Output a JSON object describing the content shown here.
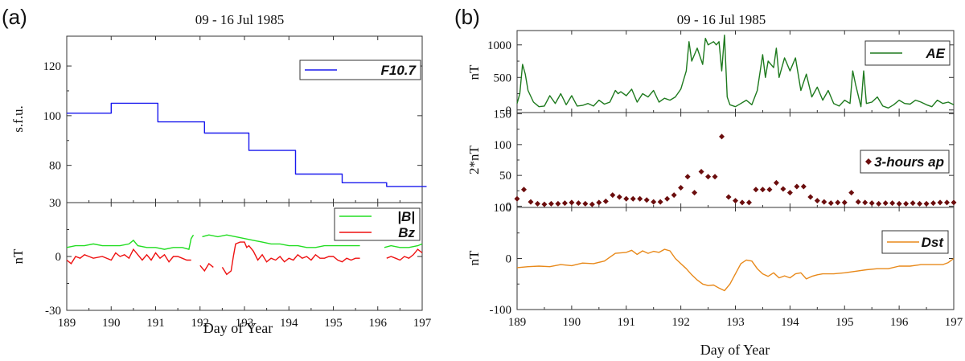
{
  "panel_a": {
    "label": "(a)",
    "title": "09 - 16 Jul 1985",
    "xlabel": "Day of Year",
    "x_ticks": [
      "189",
      "190",
      "191",
      "192",
      "193",
      "194",
      "195",
      "196",
      "197"
    ]
  },
  "panel_b": {
    "label": "(b)",
    "title": "09 - 16 Jul 1985",
    "xlabel": "Day of Year",
    "x_ticks": [
      "189",
      "190",
      "191",
      "192",
      "193",
      "194",
      "195",
      "196",
      "197"
    ]
  },
  "colors": {
    "f107": "#1a1aee",
    "b_total": "#22dd22",
    "bz": "#ee1111",
    "ae": "#1e7a1e",
    "ap": "#6b0d0d",
    "dst": "#e8891a"
  },
  "chart_data": [
    {
      "id": "f107",
      "panel": "a",
      "type": "line",
      "ylabel": "s.f.u.",
      "xlim": [
        189,
        197
      ],
      "ylim": [
        65,
        132
      ],
      "y_ticks": [
        80,
        100,
        120
      ],
      "legend_position": "top-right",
      "series": [
        {
          "name": "F10.7",
          "color_key": "f107",
          "step": true,
          "x": [
            189.0,
            190.0,
            190.0,
            191.05,
            191.05,
            192.1,
            192.1,
            193.1,
            193.1,
            194.15,
            194.15,
            195.2,
            195.2,
            196.2,
            196.2,
            197.1
          ],
          "y": [
            101,
            101,
            105,
            105,
            97.5,
            97.5,
            93,
            93,
            86,
            86,
            76.5,
            76.5,
            73,
            73,
            71.5,
            71.5
          ]
        }
      ]
    },
    {
      "id": "imf",
      "panel": "a",
      "type": "line",
      "ylabel": "nT",
      "xlim": [
        189,
        197
      ],
      "ylim": [
        -30,
        30
      ],
      "y_ticks": [
        -30,
        0,
        30
      ],
      "legend_position": "top-right",
      "series": [
        {
          "name": "|B|",
          "color_key": "b_total",
          "segments": [
            {
              "x": [
                189.0,
                189.2,
                189.4,
                189.6,
                189.8,
                190.0,
                190.2,
                190.4,
                190.5,
                190.6,
                190.8,
                191.0,
                191.2,
                191.4,
                191.6,
                191.75,
                191.8,
                191.85
              ],
              "y": [
                5,
                6,
                6,
                7,
                6,
                6,
                6,
                7,
                9,
                6,
                5,
                5,
                4,
                5,
                5,
                4,
                10,
                12
              ]
            },
            {
              "x": [
                192.05,
                192.2,
                192.4,
                192.6,
                192.8,
                193.0,
                193.2,
                193.4,
                193.6,
                193.8,
                194.0,
                194.2,
                194.4,
                194.6,
                194.8,
                195.0,
                195.2,
                195.4,
                195.6
              ],
              "y": [
                11,
                12,
                11,
                12,
                11,
                10,
                9,
                8,
                7,
                7,
                6,
                6,
                5,
                5,
                6,
                6,
                6,
                6,
                6
              ]
            },
            {
              "x": [
                196.15,
                196.3,
                196.5,
                196.7,
                196.9,
                197.0
              ],
              "y": [
                5,
                6,
                5,
                5,
                6,
                7
              ]
            }
          ]
        },
        {
          "name": "Bz",
          "color_key": "bz",
          "segments": [
            {
              "x": [
                189.0,
                189.1,
                189.2,
                189.3,
                189.4,
                189.5,
                189.6,
                189.8,
                190.0,
                190.1,
                190.2,
                190.3,
                190.4,
                190.5,
                190.6,
                190.7,
                190.8,
                190.9,
                191.0,
                191.1,
                191.2,
                191.3,
                191.4,
                191.5,
                191.6,
                191.7,
                191.8
              ],
              "y": [
                -2,
                -4,
                0,
                -1,
                1,
                0,
                -1,
                0,
                -2,
                2,
                0,
                1,
                -1,
                4,
                1,
                -2,
                1,
                -2,
                2,
                -1,
                1,
                -3,
                0,
                0,
                -1,
                -2,
                -2
              ]
            },
            {
              "x": [
                192.0,
                192.1,
                192.2,
                192.3
              ],
              "y": [
                -5,
                -8,
                -4,
                -6
              ]
            },
            {
              "x": [
                192.5,
                192.6,
                192.7,
                192.75,
                192.8,
                192.9,
                193.0,
                193.05,
                193.1,
                193.2,
                193.3,
                193.4,
                193.5,
                193.6,
                193.7,
                193.8,
                193.9,
                194.0,
                194.1,
                194.2,
                194.3,
                194.4,
                194.5,
                194.6,
                194.7,
                194.8,
                194.9,
                195.0,
                195.1,
                195.2,
                195.3,
                195.4,
                195.5,
                195.6
              ],
              "y": [
                -6,
                -10,
                -8,
                0,
                7,
                8,
                8,
                5,
                6,
                3,
                -2,
                1,
                -3,
                -1,
                -2,
                0,
                -3,
                -1,
                -2,
                1,
                -1,
                0,
                -2,
                1,
                -1,
                -1,
                0,
                0,
                -2,
                -3,
                -1,
                -2,
                -1,
                -1
              ]
            },
            {
              "x": [
                196.2,
                196.3,
                196.4,
                196.5,
                196.6,
                196.7,
                196.8,
                196.9,
                197.0
              ],
              "y": [
                -1,
                0,
                -1,
                -2,
                0,
                -1,
                1,
                4,
                2
              ]
            }
          ]
        }
      ]
    },
    {
      "id": "ae",
      "panel": "b",
      "type": "line",
      "ylabel": "nT",
      "xlim": [
        189,
        197
      ],
      "ylim": [
        -40,
        1220
      ],
      "y_ticks": [
        0,
        500,
        1000
      ],
      "legend_position": "top-right",
      "series": [
        {
          "name": "AE",
          "color_key": "ae",
          "x": [
            189.0,
            189.05,
            189.1,
            189.15,
            189.2,
            189.3,
            189.4,
            189.5,
            189.6,
            189.7,
            189.8,
            189.9,
            190.0,
            190.1,
            190.2,
            190.3,
            190.4,
            190.5,
            190.6,
            190.7,
            190.8,
            190.85,
            190.9,
            191.0,
            191.1,
            191.2,
            191.3,
            191.4,
            191.5,
            191.6,
            191.7,
            191.8,
            191.9,
            192.0,
            192.1,
            192.15,
            192.2,
            192.3,
            192.4,
            192.45,
            192.5,
            192.6,
            192.65,
            192.7,
            192.75,
            192.8,
            192.85,
            192.9,
            193.0,
            193.1,
            193.2,
            193.3,
            193.4,
            193.5,
            193.55,
            193.6,
            193.7,
            193.75,
            193.8,
            193.9,
            194.0,
            194.1,
            194.2,
            194.3,
            194.4,
            194.5,
            194.6,
            194.7,
            194.8,
            194.9,
            195.0,
            195.1,
            195.15,
            195.2,
            195.3,
            195.35,
            195.4,
            195.5,
            195.6,
            195.7,
            195.8,
            195.9,
            196.0,
            196.1,
            196.2,
            196.3,
            196.4,
            196.5,
            196.6,
            196.7,
            196.8,
            196.9,
            197.0
          ],
          "y": [
            100,
            250,
            700,
            550,
            300,
            120,
            50,
            60,
            220,
            100,
            250,
            80,
            220,
            60,
            70,
            100,
            60,
            150,
            90,
            120,
            300,
            250,
            280,
            220,
            320,
            120,
            250,
            200,
            300,
            120,
            180,
            150,
            200,
            320,
            600,
            1050,
            750,
            950,
            700,
            1100,
            1000,
            1050,
            1000,
            1050,
            600,
            1150,
            200,
            80,
            50,
            100,
            150,
            80,
            300,
            850,
            500,
            750,
            650,
            950,
            500,
            800,
            600,
            800,
            300,
            550,
            200,
            350,
            150,
            300,
            100,
            60,
            150,
            100,
            600,
            400,
            50,
            600,
            100,
            120,
            200,
            60,
            30,
            80,
            150,
            100,
            90,
            150,
            120,
            80,
            50,
            150,
            100,
            120,
            80
          ]
        }
      ]
    },
    {
      "id": "ap",
      "panel": "b",
      "type": "scatter",
      "ylabel": "2*nT",
      "xlim": [
        189,
        197
      ],
      "ylim": [
        -2,
        152
      ],
      "y_ticks": [
        0,
        50,
        100,
        150
      ],
      "legend_position": "top-right",
      "series": [
        {
          "name": "3-hours ap",
          "color_key": "ap",
          "x": [
            189.0,
            189.125,
            189.25,
            189.375,
            189.5,
            189.625,
            189.75,
            189.875,
            190.0,
            190.125,
            190.25,
            190.375,
            190.5,
            190.625,
            190.75,
            190.875,
            191.0,
            191.125,
            191.25,
            191.375,
            191.5,
            191.625,
            191.75,
            191.875,
            192.0,
            192.125,
            192.25,
            192.375,
            192.5,
            192.625,
            192.75,
            192.875,
            193.0,
            193.125,
            193.25,
            193.375,
            193.5,
            193.625,
            193.75,
            193.875,
            194.0,
            194.125,
            194.25,
            194.375,
            194.5,
            194.625,
            194.75,
            194.875,
            195.0,
            195.125,
            195.25,
            195.375,
            195.5,
            195.625,
            195.75,
            195.875,
            196.0,
            196.125,
            196.25,
            196.375,
            196.5,
            196.625,
            196.75,
            196.875,
            197.0
          ],
          "y": [
            12,
            27,
            7,
            4,
            3,
            4,
            4,
            5,
            6,
            5,
            4,
            3,
            6,
            8,
            18,
            15,
            12,
            12,
            12,
            10,
            7,
            7,
            12,
            18,
            30,
            48,
            22,
            56,
            48,
            48,
            113,
            15,
            9,
            6,
            6,
            27,
            27,
            27,
            38,
            28,
            22,
            32,
            32,
            15,
            9,
            7,
            5,
            6,
            6,
            22,
            7,
            6,
            5,
            4,
            5,
            5,
            4,
            4,
            5,
            4,
            4,
            5,
            6,
            6,
            6
          ]
        }
      ]
    },
    {
      "id": "dst",
      "panel": "b",
      "type": "line",
      "ylabel": "nT",
      "xlim": [
        189,
        197
      ],
      "ylim": [
        -100,
        100
      ],
      "y_ticks": [
        -100,
        0,
        100
      ],
      "legend_position": "top-right",
      "series": [
        {
          "name": "Dst",
          "color_key": "dst",
          "x": [
            189.0,
            189.2,
            189.4,
            189.6,
            189.8,
            190.0,
            190.2,
            190.4,
            190.6,
            190.8,
            191.0,
            191.1,
            191.2,
            191.3,
            191.4,
            191.5,
            191.6,
            191.7,
            191.8,
            191.9,
            192.0,
            192.1,
            192.2,
            192.3,
            192.4,
            192.5,
            192.6,
            192.7,
            192.8,
            192.9,
            193.0,
            193.1,
            193.2,
            193.3,
            193.4,
            193.5,
            193.6,
            193.7,
            193.8,
            193.9,
            194.0,
            194.1,
            194.2,
            194.3,
            194.4,
            194.5,
            194.6,
            194.8,
            195.0,
            195.2,
            195.4,
            195.6,
            195.8,
            196.0,
            196.2,
            196.4,
            196.6,
            196.8,
            196.9,
            197.0
          ],
          "y": [
            -18,
            -16,
            -15,
            -16,
            -12,
            -14,
            -9,
            -10,
            -5,
            10,
            12,
            16,
            8,
            15,
            10,
            14,
            12,
            18,
            15,
            0,
            -10,
            -20,
            -32,
            -42,
            -50,
            -53,
            -52,
            -58,
            -63,
            -50,
            -30,
            -10,
            -3,
            -5,
            -20,
            -30,
            -35,
            -28,
            -38,
            -34,
            -38,
            -30,
            -28,
            -40,
            -35,
            -32,
            -30,
            -30,
            -28,
            -25,
            -22,
            -20,
            -20,
            -15,
            -15,
            -12,
            -12,
            -12,
            -8,
            0
          ]
        }
      ]
    }
  ]
}
